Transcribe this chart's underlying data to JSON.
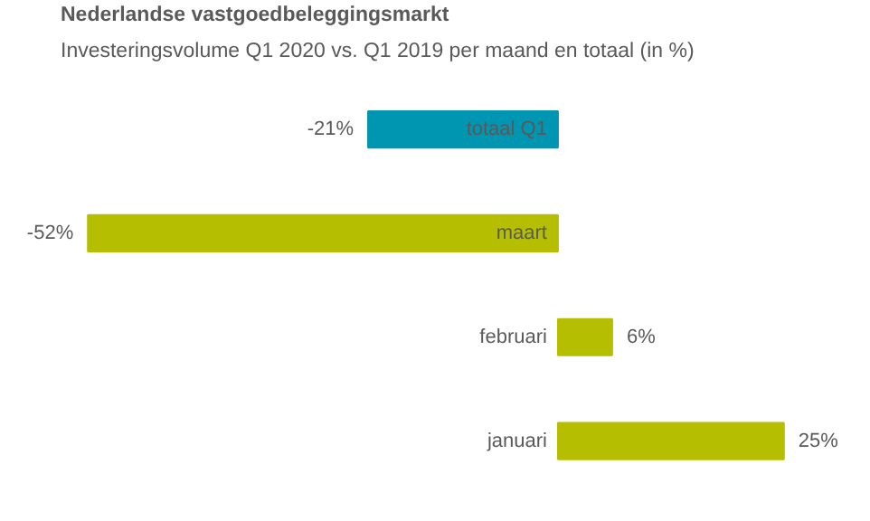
{
  "chart_data": {
    "type": "bar",
    "orientation": "horizontal",
    "title": "Nederlandse vastgoedbeleggingsmarkt",
    "subtitle": "Investeringsvolume Q1 2020 vs. Q1 2019 per maand en totaal (in %)",
    "categories": [
      "totaal Q1",
      "maart",
      "februari",
      "januari"
    ],
    "values": [
      -21,
      -52,
      6,
      25
    ],
    "colors": [
      "#0096b1",
      "#b5be00",
      "#b5be00",
      "#b5be00"
    ],
    "value_labels": [
      "-21%",
      "-52%",
      "6%",
      "25%"
    ],
    "grid": false
  }
}
